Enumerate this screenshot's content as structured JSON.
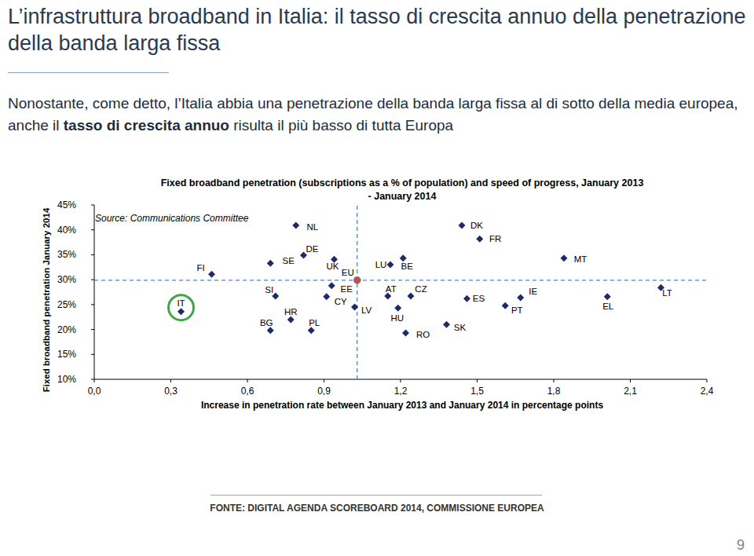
{
  "slide": {
    "title": "L’infrastruttura broadband in Italia: il tasso di crescita annuo della penetrazione della banda larga fissa",
    "subtitle": [
      {
        "text": "Nonostante, come detto, l’Italia abbia una penetrazione della banda larga fissa al di sotto della media europea, anche il ",
        "bold": false
      },
      {
        "text": "tasso di crescita annuo",
        "bold": true
      },
      {
        "text": " risulta il più basso di tutta Europa",
        "bold": false
      }
    ],
    "footer": "FONTE: DIGITAL AGENDA SCOREBOARD 2014, COMMISSIONE EUROPEA",
    "page_number": 9
  },
  "chart_data": {
    "type": "scatter",
    "title": "Fixed broadband penetration (subscriptions as a % of population) and speed of progress, January 2013 - January 2014",
    "x_label": "Increase in penetration rate between January 2013 and January 2014 in percentage points",
    "y_label": "Fixed broadband penetration January 2014",
    "annotations": [
      "Source: Communications Committee"
    ],
    "xlim": [
      0,
      2.4
    ],
    "ylim": [
      10,
      45
    ],
    "xticks": [
      {
        "value": 0,
        "label": "0,0"
      },
      {
        "value": 0.3,
        "label": "0,3"
      },
      {
        "value": 0.6,
        "label": "0,6"
      },
      {
        "value": 0.9,
        "label": "0,9"
      },
      {
        "value": 1.2,
        "label": "1,2"
      },
      {
        "value": 1.5,
        "label": "1,5"
      },
      {
        "value": 1.8,
        "label": "1,8"
      },
      {
        "value": 2.1,
        "label": "2,1"
      },
      {
        "value": 2.4,
        "label": "2,4"
      }
    ],
    "yticks": [
      {
        "value": 10,
        "label": "10%"
      },
      {
        "value": 15,
        "label": "15%"
      },
      {
        "value": 20,
        "label": "20%"
      },
      {
        "value": 25,
        "label": "25%"
      },
      {
        "value": 30,
        "label": "30%"
      },
      {
        "value": 35,
        "label": "35%"
      },
      {
        "value": 40,
        "label": "40%"
      },
      {
        "value": 45,
        "label": "45%"
      }
    ],
    "grid": false,
    "series": [
      {
        "labels": [
          "FI",
          "BG",
          "SI",
          "SE",
          "NL",
          "HR",
          "DE",
          "PL",
          "UK",
          "EE",
          "CY",
          "LV",
          "LU",
          "BE",
          "AT",
          "HU",
          "CZ",
          "RO",
          "SK",
          "DK",
          "FR",
          "ES",
          "PT",
          "IE",
          "MT",
          "EL",
          "LT"
        ],
        "x": [
          0.46,
          0.69,
          0.71,
          0.69,
          0.79,
          0.77,
          0.82,
          0.85,
          0.94,
          0.93,
          0.91,
          1.02,
          1.16,
          1.21,
          1.15,
          1.19,
          1.24,
          1.22,
          1.38,
          1.44,
          1.51,
          1.46,
          1.61,
          1.67,
          1.84,
          2.01,
          2.22
        ],
        "values": [
          31.1,
          19.8,
          26.7,
          33.3,
          40.9,
          22.0,
          34.9,
          19.8,
          34.1,
          28.8,
          26.6,
          24.5,
          33.0,
          34.3,
          26.7,
          24.3,
          26.7,
          19.3,
          21.0,
          40.9,
          38.2,
          26.2,
          24.8,
          26.4,
          34.3,
          26.6,
          28.4
        ],
        "color": "#1f2a6b",
        "marker": "diamond"
      },
      {
        "labels": [
          "EU"
        ],
        "x": [
          1.03
        ],
        "values": [
          29.9
        ],
        "color": "#c0504d",
        "marker": "circle",
        "line_style": "dashed"
      },
      {
        "labels": [
          "IT"
        ],
        "x": [
          0.34
        ],
        "values": [
          23.6
        ],
        "color": "#1f2a6b",
        "marker": "diamond-ring"
      }
    ]
  }
}
